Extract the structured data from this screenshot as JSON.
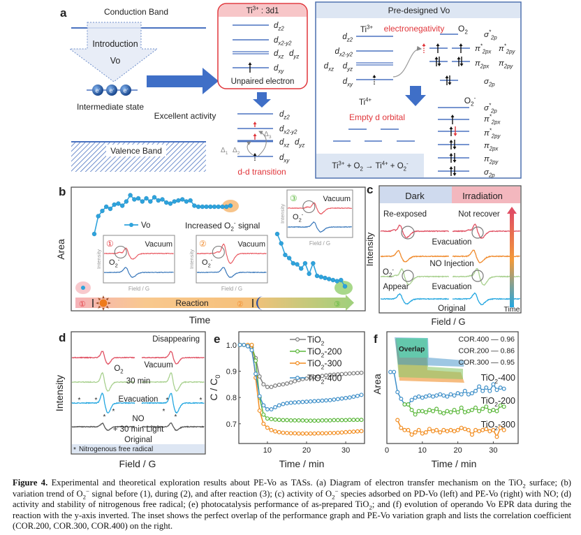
{
  "panel_labels": {
    "a": "a",
    "b": "b",
    "c": "c",
    "d": "d",
    "e": "e",
    "f": "f"
  },
  "panel_a": {
    "conduction_band": "Conduction Band",
    "introduction": "Introduction",
    "vo": "Vo",
    "electron": {
      "b": "e",
      "sup": "-"
    },
    "intermediate_state": "Intermediate state",
    "valence_band": "Valence Band",
    "excellent_activity": "Excellent activity",
    "ti3_box_title": [
      {
        "b": "Ti",
        "sup": "3+"
      },
      {
        "b": " : 3d1"
      }
    ],
    "unpaired_electron": "Unpaired electron",
    "d_orbitals": {
      "dz2": {
        "b": "d",
        "sub": "z2"
      },
      "dx2y2": {
        "b": "d",
        "sub": "x2-y2"
      },
      "dxz": {
        "b": "d",
        "sub": "xz"
      },
      "dyz": {
        "b": "d",
        "sub": "yz"
      },
      "dxy": {
        "b": "d",
        "sub": "xy"
      }
    },
    "deltas": [
      {
        "b": "Δ",
        "sub": "1"
      },
      {
        "b": "Δ",
        "sub": "2"
      },
      {
        "b": "Δ",
        "sub": "3"
      }
    ],
    "dd_transition": "d-d transition",
    "predesigned": {
      "title": "Pre-designed Vo",
      "ti3": {
        "b": "Ti",
        "sup": "3+"
      },
      "electronegativity": "electronegativity",
      "o2": {
        "b": "O",
        "sub": "2"
      },
      "o2_orbitals": {
        "sigma_star": [
          {
            "b": "σ",
            "sup": "*"
          },
          {
            "sub": "2p"
          }
        ],
        "pi_star_x": [
          {
            "b": "π",
            "sup": "*"
          },
          {
            "sub": "2px"
          }
        ],
        "pi_star_y": [
          {
            "b": "π",
            "sup": "*"
          },
          {
            "sub": "2py"
          }
        ],
        "pi_x": {
          "b": "π",
          "sub": "2px"
        },
        "pi_y": {
          "b": "π",
          "sub": "2py"
        },
        "sigma": {
          "b": "σ",
          "sub": "2p"
        }
      },
      "ti4": {
        "b": "Ti",
        "sup": "4+"
      },
      "empty_d_orbital": "Empty d orbital",
      "o2_minus": [
        {
          "b": "O",
          "sub": "2"
        },
        {
          "sup": "-"
        }
      ],
      "equation": [
        {
          "b": "Ti",
          "sup": "3+"
        },
        {
          "b": " + O",
          "sub": "2"
        },
        {
          "b": " → Ti",
          "sup": "4+"
        },
        {
          "b": " + O",
          "sub": "2"
        },
        {
          "sup": "-"
        }
      ]
    }
  },
  "panel_b": {
    "ylabel": "Area",
    "xlabel": "Time",
    "legend_vo": "Vo",
    "increased_signal": [
      {
        "b": "Increased O",
        "sub": "2"
      },
      {
        "sup": "-"
      },
      {
        "b": " signal"
      }
    ],
    "insets": [
      {
        "num": "①",
        "vacuum": "Vacuum",
        "o2": [
          {
            "b": "O",
            "sub": "2"
          },
          {
            "sup": "-"
          }
        ],
        "ylabel": "Intensity",
        "xlabel": "Field / G"
      },
      {
        "num": "②",
        "vacuum": "Vacuum",
        "o2": [
          {
            "b": "O",
            "sub": "2"
          },
          {
            "sup": "-"
          }
        ],
        "ylabel": "Intensity",
        "xlabel": "Field / G"
      },
      {
        "num": "③",
        "vacuum": "Vacuum",
        "o2": [
          {
            "b": "O",
            "sub": "2"
          },
          {
            "sup": "-"
          }
        ],
        "ylabel": "Intensity",
        "xlabel": "Field / G"
      }
    ],
    "reaction": "Reaction",
    "stages": [
      "①",
      "②",
      "③"
    ],
    "vo_trend_during": [
      0.4,
      0.57,
      0.62,
      0.66,
      0.64,
      0.68,
      0.69,
      0.67,
      0.71,
      0.77,
      0.73,
      0.74,
      0.71,
      0.74,
      0.71,
      0.75,
      0.72,
      0.73,
      0.7,
      0.69,
      0.71,
      0.72,
      0.73,
      0.71,
      0.72,
      0.67,
      0.66,
      0.66,
      0.66,
      0.66,
      0.66,
      0.66,
      0.66,
      0.66,
      0.67
    ],
    "vo_trend_after": [
      0.4,
      0.31,
      0.2,
      0.17,
      0.12,
      0.11,
      0.07,
      0.12,
      0.02,
      0.12,
      0.0,
      -0.01,
      -0.02,
      -0.03,
      -0.04,
      -0.05,
      -0.04,
      -0.1
    ],
    "colors": {
      "vo": "#2ea3dc",
      "stage1": "#f4a7b0",
      "stage2": "#f5a94a",
      "stage3": "#8fc96d"
    }
  },
  "panel_c": {
    "dark": "Dark",
    "irradiation": "Irradiation",
    "re_exposed": "Re-exposed",
    "not_recover": "Not recover",
    "evacuation_top": "Evacuation",
    "no_injection": "NO Injection",
    "o2_minus": [
      {
        "b": "O",
        "sub": "2"
      },
      {
        "sup": "-"
      }
    ],
    "appear": "Appear",
    "evacuation_bottom": "Evacuation",
    "original": "Original",
    "time": "Time",
    "ylabel": "Intensity",
    "xlabel": "Field / G"
  },
  "panel_d": {
    "disappearing": "Disappearing",
    "o2": {
      "b": "O",
      "sub": "2"
    },
    "vacuum": "Vacuum",
    "min30": "30 min",
    "evacuation": "Evacuation",
    "no": "NO",
    "light": "+ 30 min Light",
    "original": "Original",
    "star": "*",
    "footnote": "Nitrogenous free radical",
    "ylabel": "Intensity",
    "xlabel": "Field / G"
  },
  "chart_data": [
    {
      "panel": "e",
      "type": "line",
      "xlabel": "Time / min",
      "ylabel": [
        {
          "b": "C / C",
          "sub": "0"
        }
      ],
      "xlim": [
        2.7,
        34.8
      ],
      "ylim": [
        0.625,
        1.05
      ],
      "xticks": [
        10,
        20,
        30
      ],
      "yticks": [
        0.7,
        0.8,
        0.9,
        1.0
      ],
      "ytick_labels": [
        "0.7",
        "0.8",
        "0.9",
        "1.0"
      ],
      "legend": "top-right",
      "x": [
        3,
        4,
        5,
        6,
        7,
        8,
        9,
        10,
        11,
        12,
        13,
        14,
        15,
        16,
        17,
        18,
        19,
        20,
        21,
        22,
        23,
        24,
        25,
        26,
        27,
        28,
        29,
        30,
        31,
        32,
        33,
        34
      ],
      "series": [
        {
          "name": [
            {
              "b": "TiO",
              "sub": "2"
            }
          ],
          "color": "#7f7f7f",
          "values": [
            1.0,
            1.0,
            0.995,
            0.99,
            0.95,
            0.88,
            0.85,
            0.84,
            0.84,
            0.845,
            0.848,
            0.85,
            0.853,
            0.857,
            0.862,
            0.866,
            0.87,
            0.872,
            0.875,
            0.878,
            0.88,
            0.882,
            0.884,
            0.886,
            0.887,
            0.888,
            0.889,
            0.89,
            0.891,
            0.892,
            0.893,
            0.894
          ]
        },
        {
          "name": [
            {
              "b": "TiO",
              "sub": "2"
            },
            {
              "b": "-200"
            }
          ],
          "color": "#5cb83c",
          "values": [
            1.0,
            1.0,
            1.0,
            1.0,
            0.94,
            0.8,
            0.735,
            0.72,
            0.718,
            0.716,
            0.715,
            0.714,
            0.714,
            0.713,
            0.713,
            0.713,
            0.713,
            0.712,
            0.712,
            0.712,
            0.712,
            0.713,
            0.713,
            0.713,
            0.714,
            0.714,
            0.714,
            0.714,
            0.715,
            0.715,
            0.715,
            0.715
          ]
        },
        {
          "name": [
            {
              "b": "TiO",
              "sub": "2"
            },
            {
              "b": "-300"
            }
          ],
          "color": "#f28c1e",
          "values": [
            1.0,
            1.0,
            1.0,
            1.0,
            0.875,
            0.75,
            0.7,
            0.685,
            0.676,
            0.671,
            0.668,
            0.666,
            0.665,
            0.664,
            0.664,
            0.663,
            0.663,
            0.663,
            0.663,
            0.663,
            0.664,
            0.664,
            0.664,
            0.665,
            0.665,
            0.666,
            0.667,
            0.668,
            0.669,
            0.67,
            0.671,
            0.672
          ]
        },
        {
          "name": [
            {
              "b": "TiO",
              "sub": "2"
            },
            {
              "b": "-400"
            }
          ],
          "color": "#3e8fc8",
          "values": [
            1.0,
            1.0,
            0.995,
            0.98,
            0.89,
            0.805,
            0.77,
            0.755,
            0.755,
            0.763,
            0.77,
            0.775,
            0.778,
            0.78,
            0.781,
            0.782,
            0.783,
            0.784,
            0.785,
            0.786,
            0.787,
            0.788,
            0.789,
            0.79,
            0.792,
            0.794,
            0.796,
            0.798,
            0.8,
            0.803,
            0.806,
            0.81
          ]
        }
      ]
    },
    {
      "panel": "f",
      "type": "line",
      "xlabel": "Time / min",
      "ylabel": "Area",
      "y_axis_inverted": true,
      "xlim": [
        0,
        37
      ],
      "ylim": [
        0,
        1
      ],
      "xticks": [
        0,
        10,
        20,
        30
      ],
      "inset_label": "Overlap",
      "correlations": [
        {
          "label": "COR.400",
          "value": "0.96"
        },
        {
          "label": "COR.200",
          "value": "0.86"
        },
        {
          "label": "COR.300",
          "value": "0.95"
        }
      ],
      "series": [
        {
          "name": [
            {
              "b": "TiO",
              "sub": "2"
            },
            {
              "b": "-400"
            }
          ],
          "color": "#3e8fc8",
          "x": [
            1,
            2,
            3,
            4,
            5,
            6,
            7,
            8,
            9,
            10,
            11,
            12,
            13,
            14,
            15,
            16,
            17,
            18,
            19,
            20,
            21,
            22,
            23,
            24,
            25,
            26,
            27,
            28,
            29,
            30,
            31,
            32,
            33
          ],
          "values": [
            0.64,
            0.64,
            0.46,
            0.4,
            0.35,
            0.35,
            0.39,
            0.41,
            0.42,
            0.41,
            0.42,
            0.43,
            0.42,
            0.43,
            0.44,
            0.43,
            0.42,
            0.44,
            0.43,
            0.45,
            0.44,
            0.47,
            0.44,
            0.45,
            0.47,
            0.51,
            0.47,
            0.5,
            0.47,
            0.53,
            0.48,
            0.5,
            0.49
          ]
        },
        {
          "name": [
            {
              "b": "TiO",
              "sub": "2"
            },
            {
              "b": "-200"
            }
          ],
          "color": "#5cb83c",
          "x": [
            5,
            6,
            7,
            8,
            9,
            10,
            11,
            12,
            13,
            14,
            15,
            16,
            17,
            18,
            19,
            20,
            21,
            22,
            23,
            24,
            25,
            26,
            27,
            28,
            29,
            30,
            31,
            32,
            33
          ],
          "values": [
            0.35,
            0.35,
            0.3,
            0.26,
            0.29,
            0.29,
            0.28,
            0.3,
            0.29,
            0.31,
            0.28,
            0.27,
            0.29,
            0.28,
            0.3,
            0.28,
            0.32,
            0.28,
            0.29,
            0.3,
            0.32,
            0.29,
            0.31,
            0.33,
            0.29,
            0.3,
            0.29,
            0.34,
            0.33
          ]
        },
        {
          "name": [
            {
              "b": "TiO",
              "sub": "2"
            },
            {
              "b": "-300"
            }
          ],
          "color": "#f28c1e",
          "x": [
            3,
            4,
            5,
            6,
            7,
            8,
            9,
            10,
            11,
            12,
            13,
            14,
            15,
            16,
            17,
            18,
            19,
            20,
            21,
            22,
            23,
            24,
            25,
            26,
            27,
            28,
            29,
            30,
            31,
            32,
            33
          ],
          "values": [
            0.21,
            0.14,
            0.12,
            0.12,
            0.08,
            0.1,
            0.12,
            0.09,
            0.1,
            0.13,
            0.11,
            0.12,
            0.1,
            0.12,
            0.11,
            0.12,
            0.11,
            0.12,
            0.14,
            0.13,
            0.12,
            0.08,
            0.12,
            0.11,
            0.12,
            0.13,
            0.11,
            0.12,
            0.06,
            0.14,
            0.12
          ]
        }
      ]
    }
  ],
  "caption": [
    {
      "b": "Figure 4.",
      "bold": true
    },
    {
      "b": " Experimental and theoretical exploration results about PE-Vo as TASs. (a) Diagram of electron transfer mechanism on the TiO"
    },
    {
      "sub": "2"
    },
    {
      "b": " surface; (b) variation trend of O"
    },
    {
      "sub": "2"
    },
    {
      "sup": "−"
    },
    {
      "b": " signal before (1), during (2), and after reaction (3); (c) activity of O"
    },
    {
      "sub": "2"
    },
    {
      "sup": "−"
    },
    {
      "b": " species adsorbed on PD-Vo (left) and PE-Vo (right) with NO; (d) activity and stability of nitrogenous free radical; (e) photocatalysis performance of as-prepared TiO"
    },
    {
      "sub": "2"
    },
    {
      "b": "; and (f) evolution of operando Vo EPR data during the reaction with the y-axis inverted. The inset shows the perfect overlap of the performance graph and PE-Vo variation graph and lists the correlation coefficient (COR.200, COR.300, COR.400) on the right."
    }
  ]
}
